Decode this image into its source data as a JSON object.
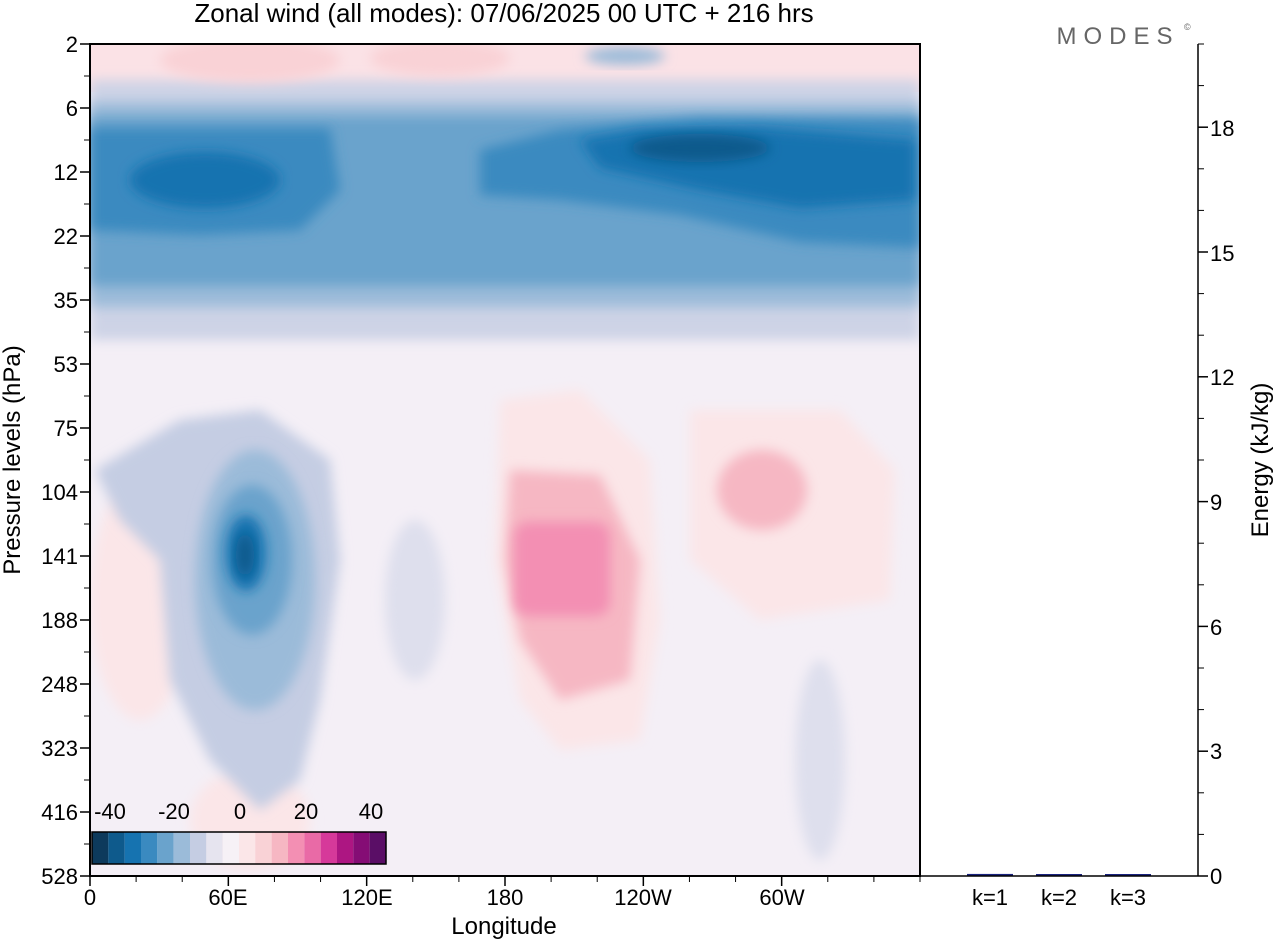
{
  "title": "Zonal wind (all modes):  07/06/2025  00 UTC  + 216 hrs",
  "watermark": "MODES",
  "watermark_mark": "©",
  "chart_data": [
    {
      "type": "heatmap",
      "xlabel": "Longitude",
      "ylabel": "Pressure levels (hPa)",
      "x_ticks": [
        "0",
        "60E",
        "120E",
        "180",
        "120W",
        "60W"
      ],
      "x_tick_degrees": [
        0,
        60,
        120,
        180,
        240,
        300
      ],
      "xlim": [
        0,
        360
      ],
      "y_ticks": [
        "2",
        "6",
        "12",
        "22",
        "35",
        "53",
        "75",
        "104",
        "141",
        "188",
        "248",
        "323",
        "416",
        "528"
      ],
      "colorbar": {
        "tick_labels": [
          "-40",
          "-20",
          "0",
          "20",
          "40"
        ],
        "tick_values": [
          -40,
          -20,
          0,
          20,
          40
        ],
        "range": [
          -45,
          45
        ],
        "step": 5,
        "colors": [
          "#0d3a5c",
          "#0e5a8c",
          "#1673b0",
          "#3a8ac0",
          "#6aa3cc",
          "#9bbbd9",
          "#c5cde3",
          "#e6e4ef",
          "#f6f1f6",
          "#fbe6e8",
          "#f9d2d6",
          "#f6b7c3",
          "#f38fb3",
          "#e96aa6",
          "#d6399a",
          "#ad1682",
          "#850d75",
          "#5a0e66"
        ]
      },
      "features": [
        {
          "lon": 125,
          "level": "12",
          "value": -22
        },
        {
          "lon": 225,
          "level": "12",
          "value": -35
        },
        {
          "lon": 50,
          "level": "12",
          "value": -30
        },
        {
          "lon": 70,
          "level": "141",
          "value": -30
        },
        {
          "lon": 206,
          "level": "141",
          "value": 18
        },
        {
          "lon": 290,
          "level": "104",
          "value": 10
        },
        {
          "lon": 60,
          "level": "2",
          "value": 8
        }
      ]
    },
    {
      "type": "bar",
      "ylabel": "Energy (kJ/kg)",
      "categories": [
        "k=1",
        "k=2",
        "k=3"
      ],
      "values": [
        0.05,
        0.03,
        0.02
      ],
      "ylim": [
        0,
        20
      ],
      "y_ticks": [
        0,
        3,
        6,
        9,
        12,
        15,
        18
      ]
    }
  ]
}
